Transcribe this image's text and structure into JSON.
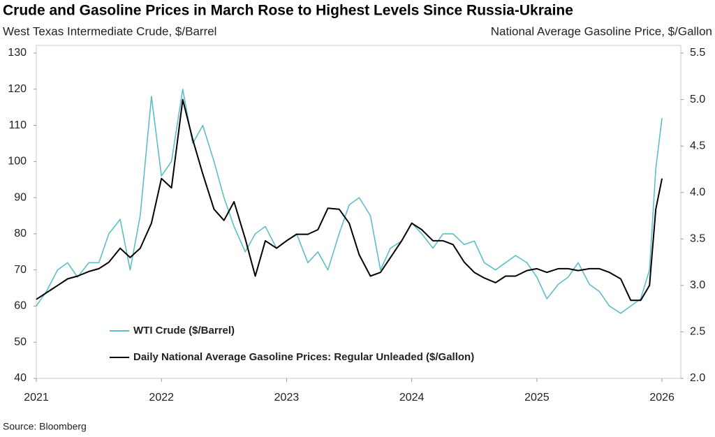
{
  "chart_data": {
    "type": "line",
    "title": "Crude and Gasoline Prices in March Rose to Highest Levels Since Russia-Ukraine",
    "y_label": "West Texas Intermediate Crude, $/Barrel",
    "y2_label": "National Average Gasoline Price, $/Gallon",
    "source": "Source: Bloomberg",
    "x": [
      2021,
      2021.08,
      2021.17,
      2021.25,
      2021.33,
      2021.42,
      2021.5,
      2021.58,
      2021.67,
      2021.75,
      2021.83,
      2021.92,
      2022,
      2022.08,
      2022.17,
      2022.25,
      2022.33,
      2022.42,
      2022.5,
      2022.58,
      2022.67,
      2022.75,
      2022.83,
      2022.92,
      2023,
      2023.08,
      2023.17,
      2023.25,
      2023.33,
      2023.42,
      2023.5,
      2023.58,
      2023.67,
      2023.75,
      2023.83,
      2023.92,
      2024,
      2024.08,
      2024.17,
      2024.25,
      2024.33,
      2024.42,
      2024.5,
      2024.58,
      2024.67,
      2024.75,
      2024.83,
      2024.92,
      2025,
      2025.08,
      2025.17,
      2025.25,
      2025.33,
      2025.42,
      2025.5,
      2025.58,
      2025.67,
      2025.75,
      2025.83,
      2025.9,
      2025.95,
      2026
    ],
    "series": [
      {
        "name": "WTI Crude ($/Barrel)",
        "color": "#5bbfc7",
        "axis": "y",
        "values": [
          60,
          64,
          70,
          72,
          68,
          72,
          72,
          80,
          84,
          70,
          85,
          118,
          96,
          100,
          120,
          105,
          110,
          100,
          90,
          82,
          75,
          80,
          82,
          76,
          78,
          80,
          72,
          75,
          70,
          80,
          88,
          90,
          85,
          70,
          76,
          78,
          83,
          80,
          76,
          80,
          80,
          77,
          78,
          72,
          70,
          72,
          74,
          72,
          68,
          62,
          66,
          68,
          72,
          66,
          64,
          60,
          58,
          60,
          62,
          70,
          98,
          112
        ]
      },
      {
        "name": "Daily National Average Gasoline Prices: Regular Unleaded ($/Gallon)",
        "color": "#000000",
        "axis": "y2",
        "values": [
          2.85,
          2.92,
          3.0,
          3.07,
          3.1,
          3.15,
          3.18,
          3.25,
          3.4,
          3.3,
          3.4,
          3.67,
          4.15,
          4.05,
          5.0,
          4.57,
          4.2,
          3.82,
          3.7,
          3.9,
          3.5,
          3.1,
          3.48,
          3.4,
          3.48,
          3.55,
          3.55,
          3.6,
          3.83,
          3.82,
          3.67,
          3.33,
          3.1,
          3.14,
          3.3,
          3.48,
          3.67,
          3.6,
          3.48,
          3.48,
          3.44,
          3.25,
          3.14,
          3.08,
          3.03,
          3.1,
          3.1,
          3.16,
          3.18,
          3.14,
          3.18,
          3.18,
          3.16,
          3.18,
          3.18,
          3.14,
          3.07,
          2.84,
          2.84,
          3.0,
          3.82,
          4.15
        ]
      }
    ],
    "xlim": [
      2021,
      2026.15
    ],
    "xticks": [
      2021,
      2022,
      2023,
      2024,
      2025,
      2026
    ],
    "ylim": [
      40,
      130
    ],
    "yticks": [
      40,
      50,
      60,
      70,
      80,
      90,
      100,
      110,
      120,
      130
    ],
    "y2lim": [
      2,
      5.5
    ],
    "y2ticks": [
      {
        "value": 2,
        "label": "2.0"
      },
      2.5,
      {
        "value": 3,
        "label": "3.0"
      },
      3.5,
      {
        "value": 4,
        "label": "4.0"
      },
      4.5,
      {
        "value": 5,
        "label": "5.0"
      },
      5.5
    ],
    "legend": "lower left"
  }
}
